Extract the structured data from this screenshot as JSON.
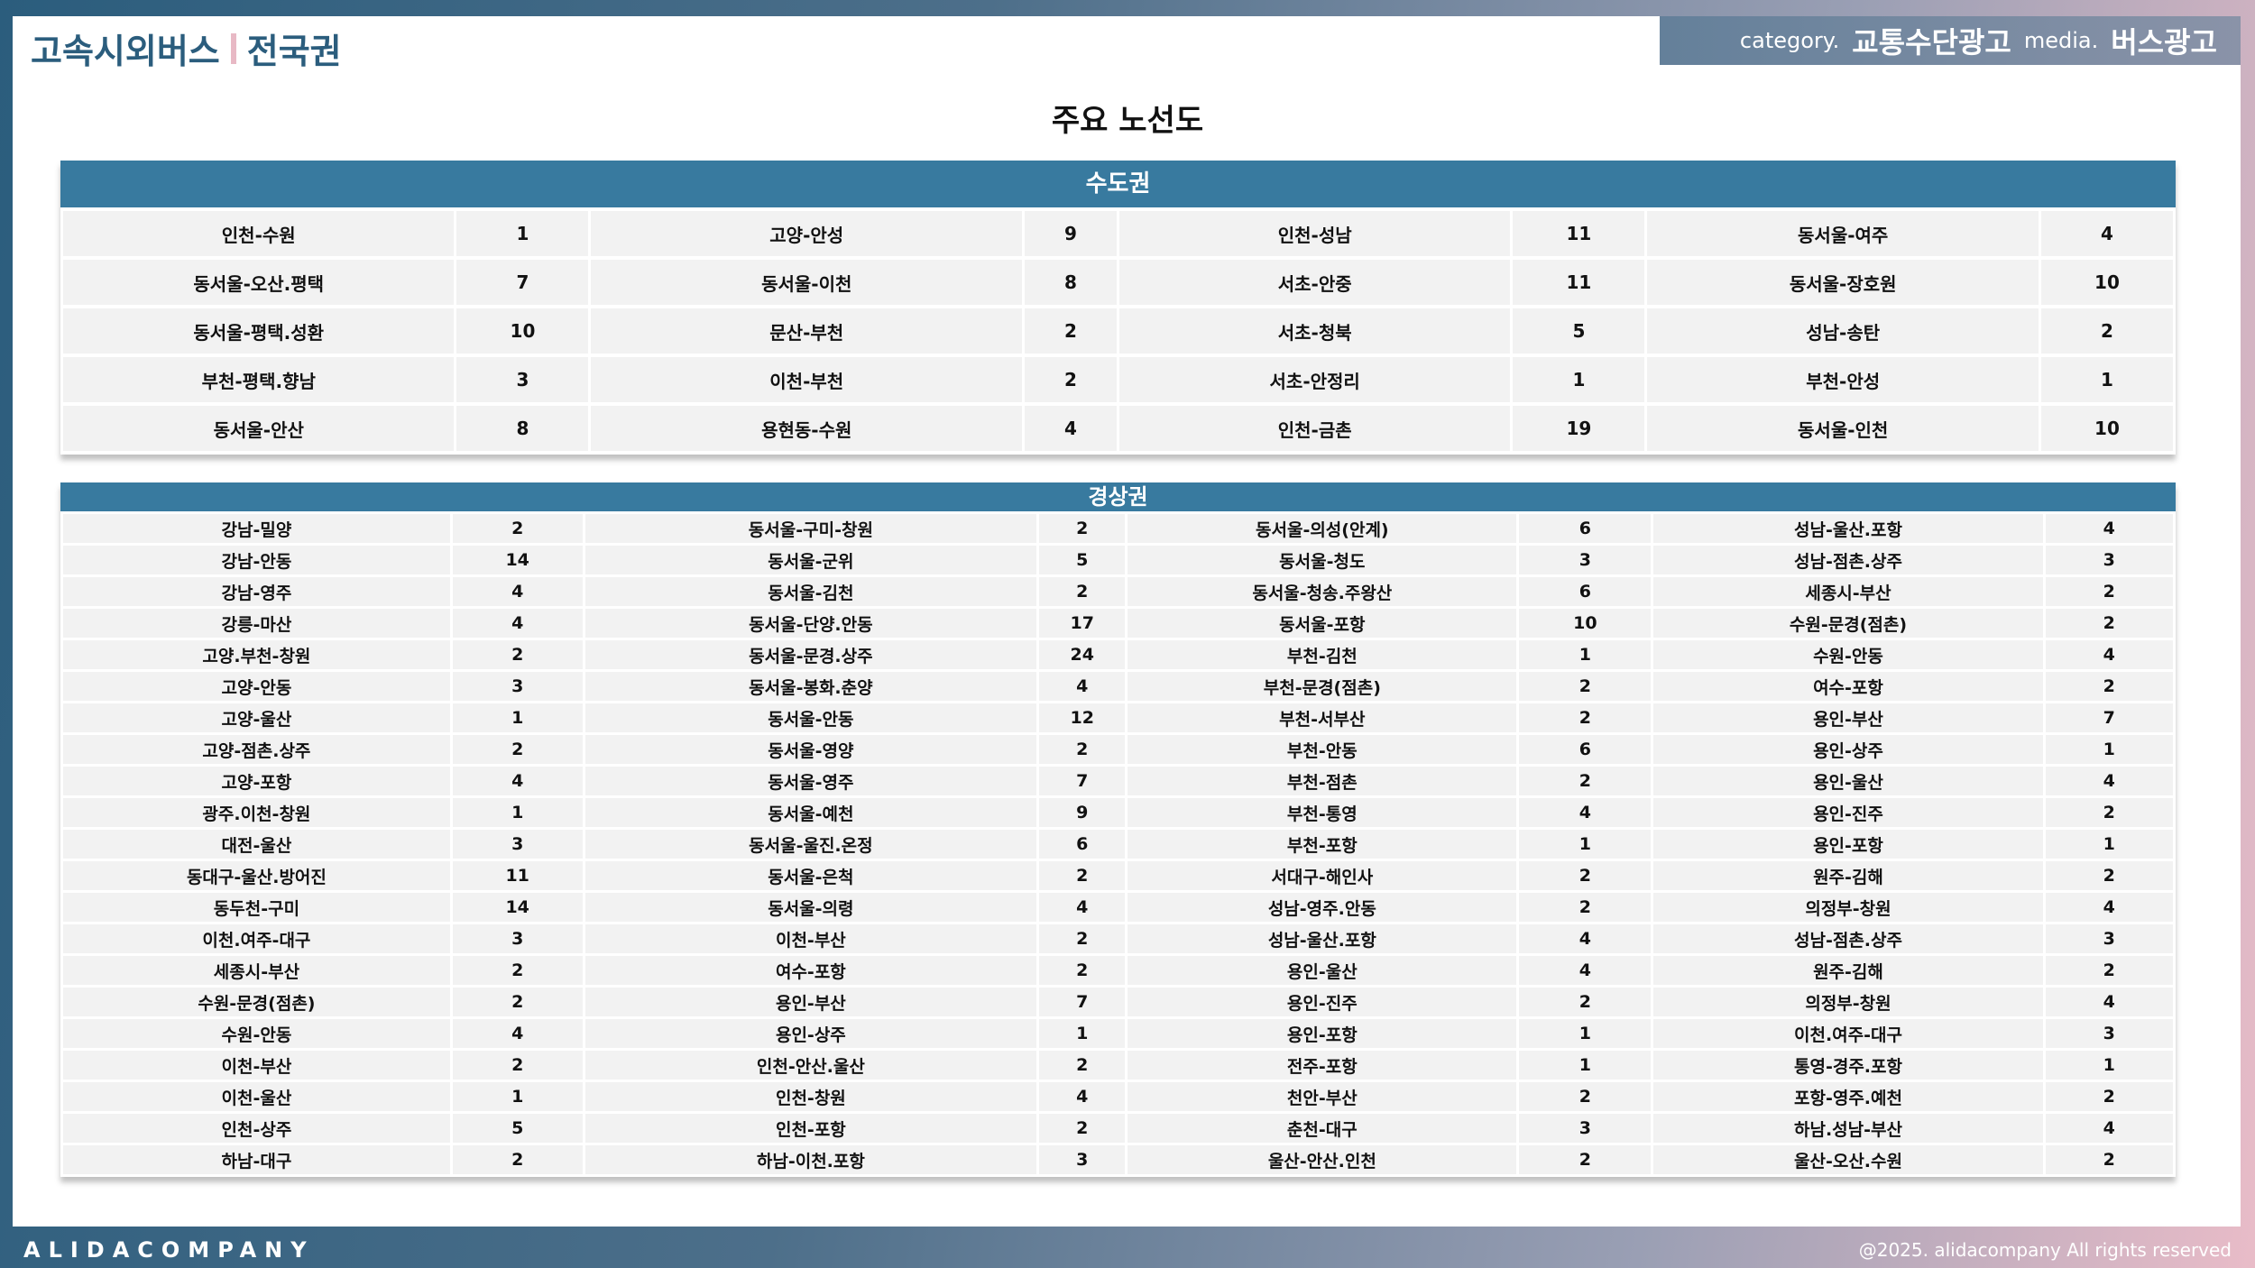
{
  "header": {
    "brand": "고속시외버스",
    "region": "전국권",
    "category_label": "category.",
    "category_value": "교통수단광고",
    "media_label": "media.",
    "media_value": "버스광고"
  },
  "title": "주요 노선도",
  "sections": [
    {
      "name": "수도권",
      "rows": [
        [
          "인천-수원",
          "1",
          "고양-안성",
          "9",
          "인천-성남",
          "11",
          "동서울-여주",
          "4"
        ],
        [
          "동서울-오산.평택",
          "7",
          "동서울-이천",
          "8",
          "서초-안중",
          "11",
          "동서울-장호원",
          "10"
        ],
        [
          "동서울-평택.성환",
          "10",
          "문산-부천",
          "2",
          "서초-청북",
          "5",
          "성남-송탄",
          "2"
        ],
        [
          "부천-평택.향남",
          "3",
          "이천-부천",
          "2",
          "서초-안정리",
          "1",
          "부천-안성",
          "1"
        ],
        [
          "동서울-안산",
          "8",
          "용현동-수원",
          "4",
          "인천-금촌",
          "19",
          "동서울-인천",
          "10"
        ]
      ]
    },
    {
      "name": "경상권",
      "rows": [
        [
          "강남-밀양",
          "2",
          "동서울-구미-창원",
          "2",
          "동서울-의성(안계)",
          "6",
          "성남-울산.포항",
          "4"
        ],
        [
          "강남-안동",
          "14",
          "동서울-군위",
          "5",
          "동서울-청도",
          "3",
          "성남-점촌.상주",
          "3"
        ],
        [
          "강남-영주",
          "4",
          "동서울-김천",
          "2",
          "동서울-청송.주왕산",
          "6",
          "세종시-부산",
          "2"
        ],
        [
          "강릉-마산",
          "4",
          "동서울-단양.안동",
          "17",
          "동서울-포항",
          "10",
          "수원-문경(점촌)",
          "2"
        ],
        [
          "고양.부천-창원",
          "2",
          "동서울-문경.상주",
          "24",
          "부천-김천",
          "1",
          "수원-안동",
          "4"
        ],
        [
          "고양-안동",
          "3",
          "동서울-봉화.춘양",
          "4",
          "부천-문경(점촌)",
          "2",
          "여수-포항",
          "2"
        ],
        [
          "고양-울산",
          "1",
          "동서울-안동",
          "12",
          "부천-서부산",
          "2",
          "용인-부산",
          "7"
        ],
        [
          "고양-점촌.상주",
          "2",
          "동서울-영양",
          "2",
          "부천-안동",
          "6",
          "용인-상주",
          "1"
        ],
        [
          "고양-포항",
          "4",
          "동서울-영주",
          "7",
          "부천-점촌",
          "2",
          "용인-울산",
          "4"
        ],
        [
          "광주.이천-창원",
          "1",
          "동서울-예천",
          "9",
          "부천-통영",
          "4",
          "용인-진주",
          "2"
        ],
        [
          "대전-울산",
          "3",
          "동서울-울진.온정",
          "6",
          "부천-포항",
          "1",
          "용인-포항",
          "1"
        ],
        [
          "동대구-울산.방어진",
          "11",
          "동서울-은척",
          "2",
          "서대구-해인사",
          "2",
          "원주-김해",
          "2"
        ],
        [
          "동두천-구미",
          "14",
          "동서울-의령",
          "4",
          "성남-영주.안동",
          "2",
          "의정부-창원",
          "4"
        ],
        [
          "이천.여주-대구",
          "3",
          "이천-부산",
          "2",
          "성남-울산.포항",
          "4",
          "성남-점촌.상주",
          "3"
        ],
        [
          "세종시-부산",
          "2",
          "여수-포항",
          "2",
          "용인-울산",
          "4",
          "원주-김해",
          "2"
        ],
        [
          "수원-문경(점촌)",
          "2",
          "용인-부산",
          "7",
          "용인-진주",
          "2",
          "의정부-창원",
          "4"
        ],
        [
          "수원-안동",
          "4",
          "용인-상주",
          "1",
          "용인-포항",
          "1",
          "이천.여주-대구",
          "3"
        ],
        [
          "이천-부산",
          "2",
          "인천-안산.울산",
          "2",
          "전주-포항",
          "1",
          "통영-경주.포항",
          "1"
        ],
        [
          "이천-울산",
          "1",
          "인천-창원",
          "4",
          "천안-부산",
          "2",
          "포항-영주.예천",
          "2"
        ],
        [
          "인천-상주",
          "5",
          "인천-포항",
          "2",
          "춘천-대구",
          "3",
          "하남.성남-부산",
          "4"
        ],
        [
          "하남-대구",
          "2",
          "하남-이천.포항",
          "3",
          "울산-안산.인천",
          "2",
          "울산-오산.수원",
          "2"
        ]
      ]
    }
  ],
  "footer": {
    "company": "ALIDACOMPANY",
    "copyright": "@2025. alidacompany All rights reserved"
  },
  "colors": {
    "accent": "#387a9f",
    "brand": "#2b5d7d",
    "separator": "#e8b9c5"
  }
}
